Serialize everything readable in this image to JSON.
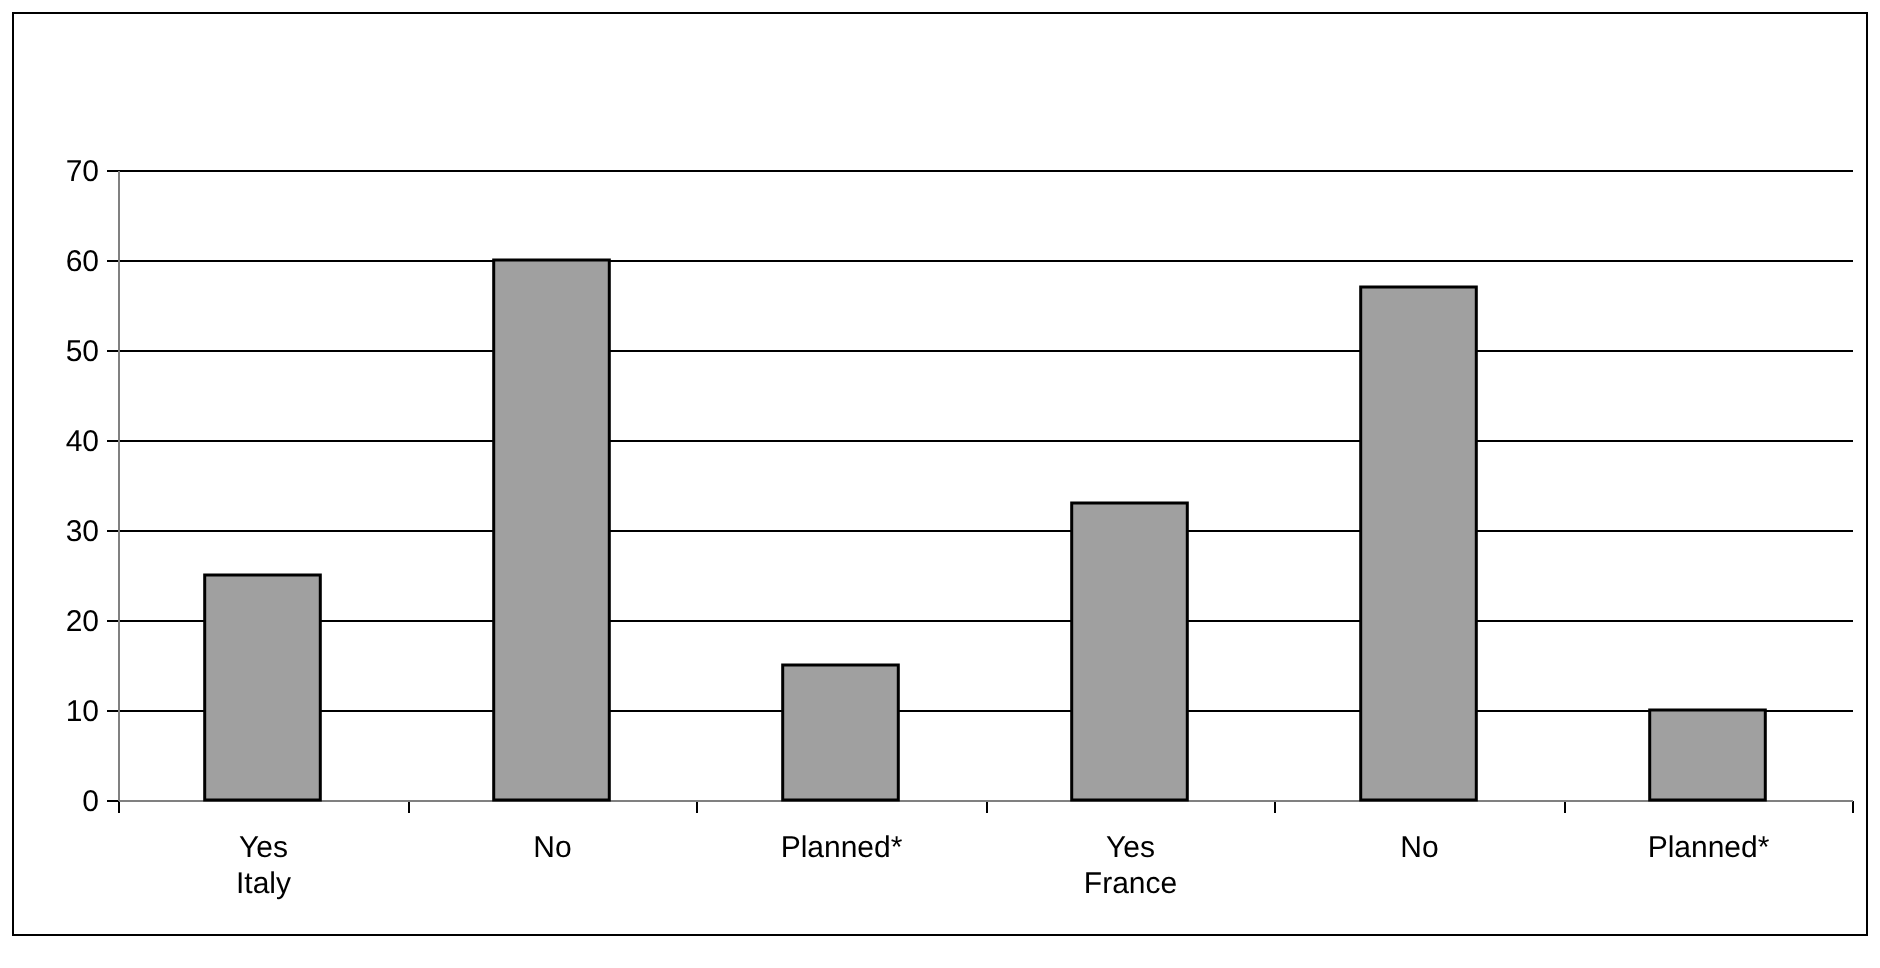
{
  "chart_data": {
    "type": "bar",
    "categories": [
      "Yes\nItaly",
      "No",
      "Planned*",
      "Yes\nFrance",
      "No",
      "Planned*"
    ],
    "values": [
      25,
      60,
      15,
      33,
      57,
      10
    ],
    "color": "#a0a0a0",
    "ylim": [
      0,
      70
    ],
    "yticks": [
      0,
      10,
      20,
      30,
      40,
      50,
      60,
      70
    ],
    "grid": "y"
  }
}
